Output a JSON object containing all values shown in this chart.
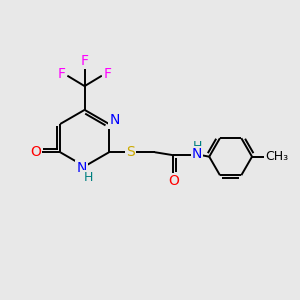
{
  "bg_color": "#e8e8e8",
  "bond_color": "#000000",
  "atom_colors": {
    "N": "#0000ff",
    "O": "#ff0000",
    "S": "#ccaa00",
    "F": "#ff00ff",
    "H": "#008080",
    "C": "#000000"
  },
  "font_size": 10,
  "lw": 1.4
}
